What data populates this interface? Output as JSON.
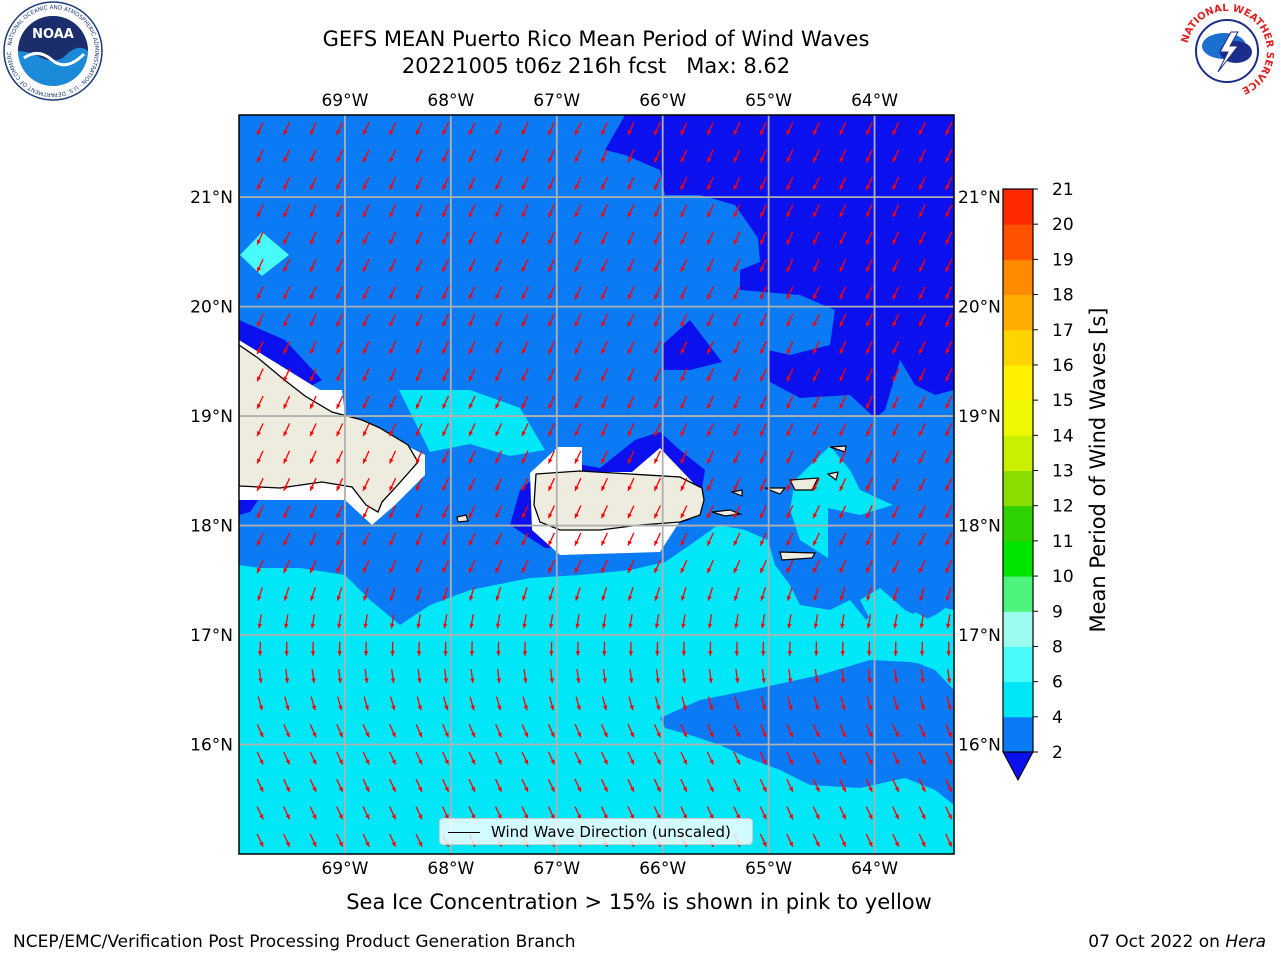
{
  "header": {
    "title_line1": "GEFS MEAN Puerto Rico Mean Period of Wind Waves",
    "title_line2": "20221005 t06z 216h fcst   Max: 8.62",
    "noaa_logo_text": "NOAA",
    "noaa_ring_text": "NATIONAL OCEANIC AND ATMOSPHERIC ADMINISTRATION · U.S. DEPARTMENT OF COMMERCE",
    "nws_ring_text": "NATIONAL WEATHER SERVICE"
  },
  "map": {
    "lon_labels": [
      "69°W",
      "68°W",
      "67°W",
      "66°W",
      "65°W",
      "64°W"
    ],
    "lat_labels": [
      "21°N",
      "20°N",
      "19°N",
      "18°N",
      "17°N",
      "16°N"
    ],
    "lon_values": [
      -69,
      -68,
      -67,
      -66,
      -65,
      -64
    ],
    "lat_values": [
      21,
      20,
      19,
      18,
      17,
      16
    ],
    "extent": {
      "lon_min": -70.0,
      "lon_max": -63.25,
      "lat_min": 15.0,
      "lat_max": 21.75
    },
    "legend_label": "Wind Wave Direction (unscaled)",
    "arrow_color": "#ff0000",
    "land_color": "#eeecdf"
  },
  "colorbar": {
    "title": "Mean Period of Wind Waves [s]",
    "tick_labels": [
      "2",
      "4",
      "6",
      "8",
      "9",
      "10",
      "11",
      "12",
      "13",
      "14",
      "15",
      "16",
      "17",
      "18",
      "19",
      "20",
      "21"
    ],
    "levels": [
      2,
      4,
      6,
      8,
      9,
      10,
      11,
      12,
      13,
      14,
      15,
      16,
      17,
      18,
      19,
      20,
      21
    ],
    "colors": [
      "#0a7af5",
      "#00e8f8",
      "#48fafa",
      "#9cfcf0",
      "#4cf47c",
      "#00e400",
      "#2ed200",
      "#8ade00",
      "#c8f000",
      "#eef800",
      "#fff000",
      "#ffd400",
      "#ffae00",
      "#ff8a00",
      "#ff5200",
      "#ff2a00"
    ],
    "extend_low_color": "#0a10ee"
  },
  "footer": {
    "subtitle": "Sea Ice Concentration > 15% is shown in pink to yellow",
    "left": "NCEP/EMC/Verification Post Processing Product Generation Branch",
    "right_date": "07 Oct 2022 on ",
    "right_machine": "Hera"
  }
}
